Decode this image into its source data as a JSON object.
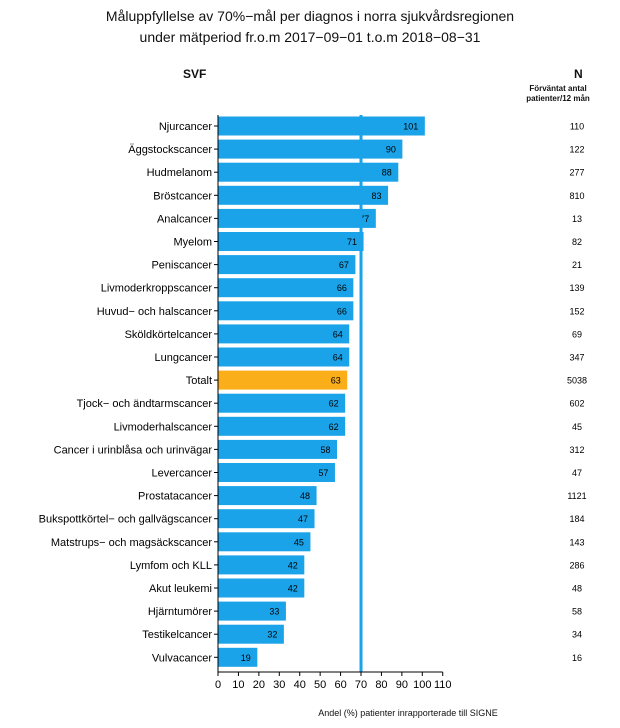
{
  "chart_data": {
    "type": "bar",
    "orientation": "horizontal",
    "title_line1": "Måluppfyllelse av 70%−mål per diagnos i norra sjukvårdsregionen",
    "title_line2": "under mätperiod fr.o.m 2017−09−01 t.o.m 2018−08−31",
    "left_header": "SVF",
    "right_header": "N",
    "right_subheader_line1": "Förväntat antal",
    "right_subheader_line2": "patienter/12 mån",
    "xlabel": "Andel (%) patienter inrapporterade till SIGNE",
    "xlim": [
      0,
      110
    ],
    "xticks": [
      0,
      10,
      20,
      30,
      40,
      50,
      60,
      70,
      80,
      90,
      100,
      110
    ],
    "target_line": 70,
    "colors": {
      "bar": "#1aa3e8",
      "highlight": "#f9ae1a",
      "target": "#1aa3e8"
    },
    "categories": [
      "Njurcancer",
      "Äggstockscancer",
      "Hudmelanom",
      "Bröstcancer",
      "Analcancer",
      "Myelom",
      "Peniscancer",
      "Livmoderkroppscancer",
      "Huvud− och halscancer",
      "Sköldkörtelcancer",
      "Lungcancer",
      "Totalt",
      "Tjock− och ändtarmscancer",
      "Livmoderhalscancer",
      "Cancer i urinblåsa och urinvägar",
      "Levercancer",
      "Prostatacancer",
      "Bukspottkörtel− och gallvägscancer",
      "Matstrups− och magsäckscancer",
      "Lymfom och KLL",
      "Akut leukemi",
      "Hjärntumörer",
      "Testikelcancer",
      "Vulvacancer"
    ],
    "values": [
      101,
      90,
      88,
      83,
      77,
      71,
      67,
      66,
      66,
      64,
      64,
      63,
      62,
      62,
      58,
      57,
      48,
      47,
      45,
      42,
      42,
      33,
      32,
      19
    ],
    "n_expected": [
      110,
      122,
      277,
      810,
      13,
      82,
      21,
      139,
      152,
      69,
      347,
      5038,
      602,
      45,
      312,
      47,
      1121,
      184,
      143,
      286,
      48,
      58,
      34,
      16
    ],
    "highlight_category": "Totalt"
  }
}
